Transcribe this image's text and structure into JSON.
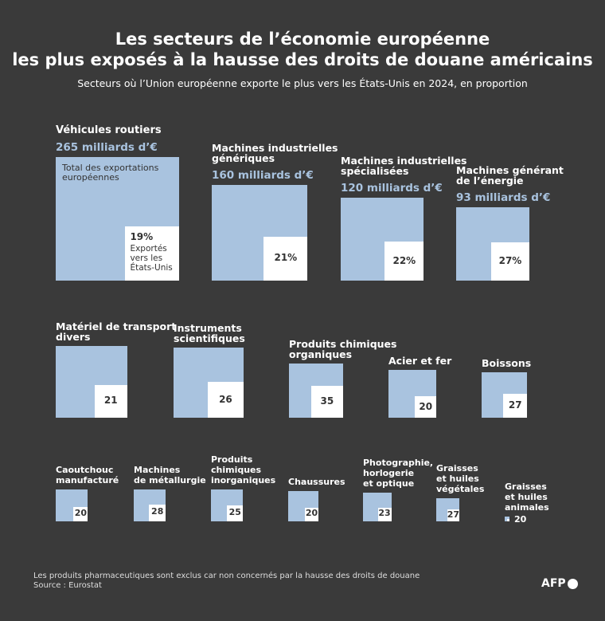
{
  "chart_data": {
    "type": "nested-squares",
    "title": "Les secteurs de l’économie européenne\nles plus exposés à la hausse des droits de douane américains",
    "subtitle": "Secteurs où l’Union européenne exporte le plus vers les États-Unis en 2024, en proportion",
    "categories": [
      "Véhicules routiers",
      "Machines industrielles\ngénériques",
      "Machines industrielles\nspécialisées",
      "Machines générant\nde l’énergie",
      "Matériel de transport\ndivers",
      "Instruments\nscientifiques",
      "Produits chimiques\norganiques",
      "Acier et fer",
      "Boissons",
      "Caoutchouc\nmanufacturé",
      "Machines\nde métallurgie",
      "Produits\nchimiques\ninorganiques",
      "Chaussures",
      "Photographie,\nhorlogerie\net optique",
      "Graisses\net huiles\nvégétales",
      "Graisses\net huiles\nanimales"
    ],
    "series": [
      {
        "name": "Total des exportations européennes",
        "color": "#a9c3df",
        "values": [
          265,
          160,
          120,
          93,
          89,
          85,
          51,
          40,
          36,
          18,
          18,
          18,
          16,
          14,
          9,
          0.4
        ],
        "value_labels": [
          "265 milliards d’€",
          "160 milliards d’€",
          "120 milliards d’€",
          "93 milliards d’€",
          null,
          null,
          null,
          null,
          null,
          null,
          null,
          null,
          null,
          null,
          null,
          null
        ]
      },
      {
        "name": "Exportés vers les États-Unis",
        "color": "#ffffff",
        "values": [
          19,
          21,
          22,
          27,
          21,
          26,
          35,
          20,
          27,
          20,
          28,
          25,
          20,
          23,
          27,
          20
        ],
        "value_labels": [
          "19%",
          "21%",
          "22%",
          "27%",
          null,
          null,
          null,
          null,
          null,
          null,
          null,
          null,
          null,
          null,
          null,
          null
        ]
      }
    ],
    "notes": [
      "Les produits pharmaceutiques sont exclus car non concernés par la hausse des droits de douane",
      "Source : Eurostat"
    ],
    "credit": "AFP"
  }
}
